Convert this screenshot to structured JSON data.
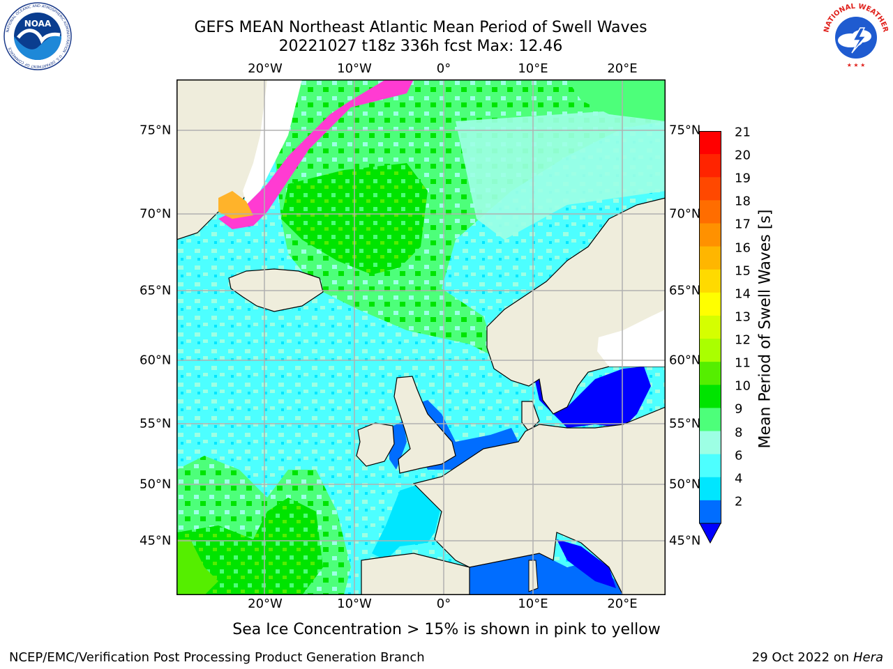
{
  "title": {
    "line1": "GEFS MEAN Northeast Atlantic Mean Period of Swell Waves",
    "line2": "20221027 t18z 336h fcst   Max: 12.46"
  },
  "map": {
    "lon_ticks": [
      "20°W",
      "10°W",
      "0°",
      "10°E",
      "20°E"
    ],
    "lat_ticks": [
      "75°N",
      "70°N",
      "65°N",
      "60°N",
      "55°N",
      "50°N",
      "45°N"
    ],
    "colors": {
      "land": "#efeddc",
      "coast": "#000000",
      "grid": "#b0b0b0",
      "ice_white": "#ffffff",
      "ice_pink": "#ff3bd2",
      "ice_yellow": "#ffb32a"
    }
  },
  "colorbar": {
    "label": "Mean Period of Swell Waves [s]",
    "ticks": [
      "21",
      "20",
      "19",
      "18",
      "17",
      "16",
      "15",
      "14",
      "13",
      "12",
      "11",
      "10",
      "9",
      "8",
      "6",
      "4",
      "2"
    ],
    "colors_top_to_bottom": [
      "#ff0000",
      "#ff2400",
      "#ff4800",
      "#ff6d00",
      "#ff9100",
      "#ffb600",
      "#ffda00",
      "#ffff00",
      "#d5ff00",
      "#aaff00",
      "#55ee00",
      "#00e400",
      "#4dff7a",
      "#9dffe4",
      "#4dffff",
      "#00e6ff",
      "#006dff"
    ],
    "extend_color": "#0000ff"
  },
  "subtitle": "Sea Ice Concentration > 15% is shown in pink to yellow",
  "footer": {
    "left": "NCEP/EMC/Verification Post Processing Product Generation Branch",
    "right_date": "29 Oct 2022 on ",
    "right_machine": "Hera"
  },
  "logos": {
    "left": "noaa-logo",
    "right": "nws-logo",
    "noaa_text": "NOAA",
    "noaa_ring_text": "NATIONAL OCEANIC AND ATMOSPHERIC ADMINISTRATION · U.S. DEPARTMENT OF COMMERCE",
    "nws_ring_text": "NATIONAL WEATHER SERVICE"
  }
}
